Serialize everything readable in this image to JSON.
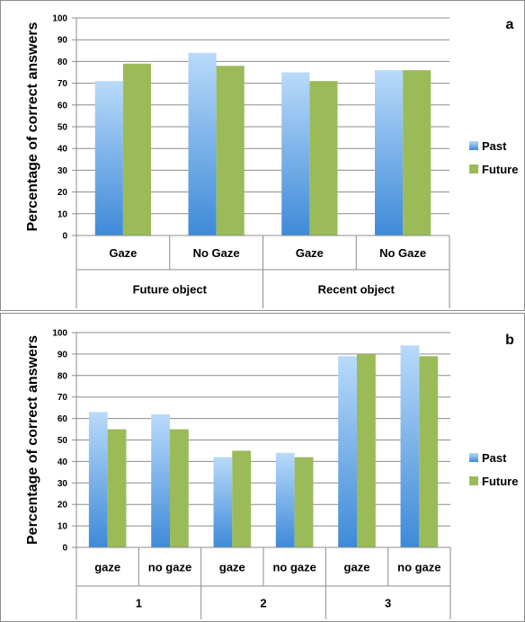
{
  "chart_data": [
    {
      "type": "bar",
      "panel_label": "a",
      "ylabel": "Percentage of correct answers",
      "ylim": [
        0,
        100
      ],
      "yticks": [
        0,
        10,
        20,
        30,
        40,
        50,
        60,
        70,
        80,
        90,
        100
      ],
      "grid": true,
      "legend_position": "right",
      "categories": [
        "Gaze",
        "No Gaze",
        "Gaze",
        "No Gaze"
      ],
      "groups": [
        "Future object",
        "Recent object"
      ],
      "series": [
        {
          "name": "Past",
          "values": [
            71,
            84,
            75,
            76
          ]
        },
        {
          "name": "Future",
          "values": [
            79,
            78,
            71,
            76
          ]
        }
      ]
    },
    {
      "type": "bar",
      "panel_label": "b",
      "ylabel": "Percentage of correct answers",
      "ylim": [
        0,
        100
      ],
      "yticks": [
        0,
        10,
        20,
        30,
        40,
        50,
        60,
        70,
        80,
        90,
        100
      ],
      "grid": true,
      "legend_position": "right",
      "categories": [
        "gaze",
        "no gaze",
        "gaze",
        "no gaze",
        "gaze",
        "no gaze"
      ],
      "groups": [
        "1",
        "2",
        "3"
      ],
      "series": [
        {
          "name": "Past",
          "values": [
            63,
            62,
            42,
            44,
            89,
            94
          ]
        },
        {
          "name": "Future",
          "values": [
            55,
            55,
            45,
            42,
            90,
            89
          ]
        }
      ]
    }
  ],
  "colors": {
    "past_top": "#b9dafa",
    "past_bottom": "#3e8ad8",
    "future": "#9bbb59",
    "grid": "#8c8c8c",
    "axis": "#8c8c8c"
  }
}
